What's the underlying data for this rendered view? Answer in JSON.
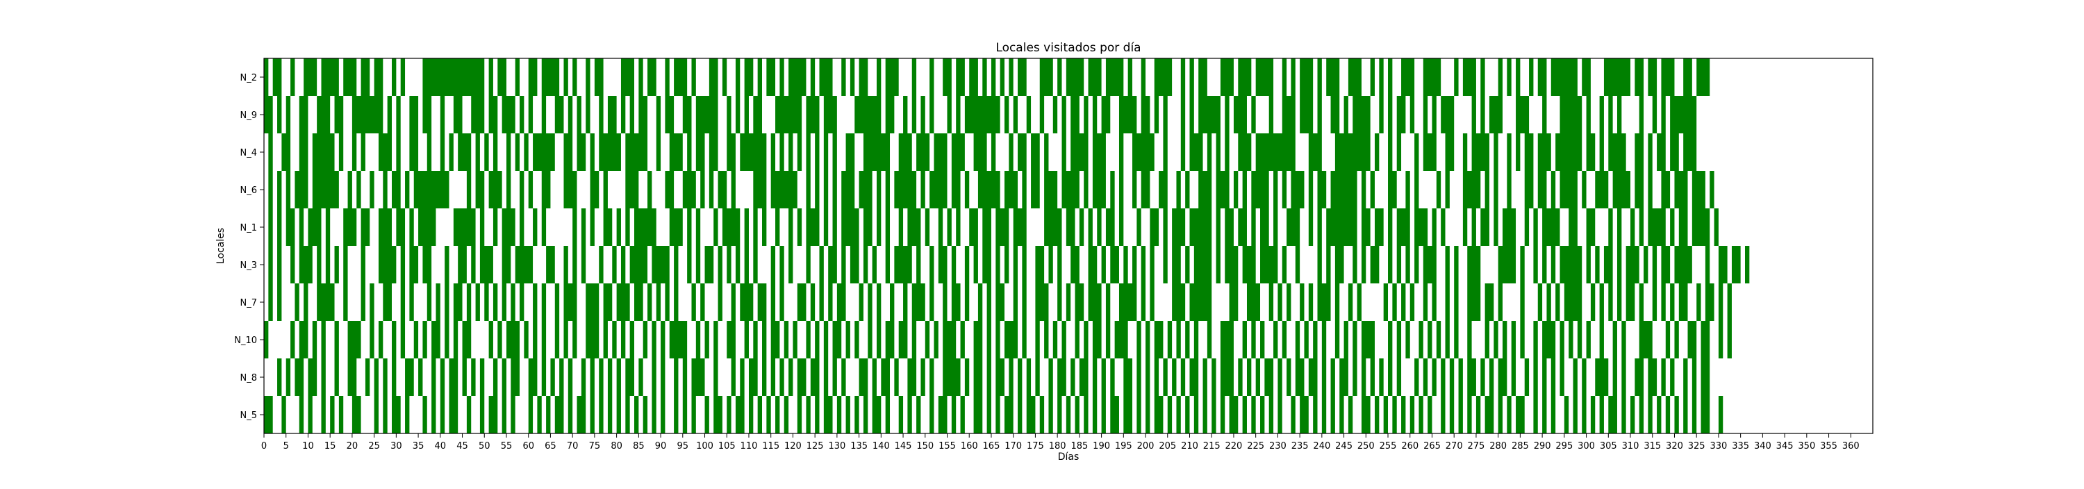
{
  "chart_data": {
    "type": "heatmap",
    "title": "Locales visitados por día",
    "xlabel": "Días",
    "ylabel": "Locales",
    "xlim": [
      0,
      365
    ],
    "categories": [
      "N_2",
      "N_9",
      "N_4",
      "N_6",
      "N_1",
      "N_3",
      "N_7",
      "N_10",
      "N_8",
      "N_5"
    ],
    "x_tick_labels": [
      "0",
      "5",
      "10",
      "15",
      "20",
      "25",
      "30",
      "35",
      "40",
      "45",
      "50",
      "55",
      "60",
      "65",
      "70",
      "75",
      "80",
      "85",
      "90",
      "95",
      "100",
      "105",
      "110",
      "115",
      "120",
      "125",
      "130",
      "135",
      "140",
      "145",
      "150",
      "155",
      "160",
      "165",
      "170",
      "175",
      "180",
      "185",
      "190",
      "195",
      "200",
      "205",
      "210",
      "215",
      "220",
      "225",
      "230",
      "235",
      "240",
      "245",
      "250",
      "255",
      "260",
      "265",
      "270",
      "275",
      "280",
      "285",
      "290",
      "295",
      "300",
      "305",
      "310",
      "315",
      "320",
      "325",
      "330",
      "335",
      "340",
      "345",
      "350",
      "355",
      "360"
    ],
    "visited_color": "#008000",
    "empty_color": "#ffffff",
    "grid": false,
    "legend": "none",
    "visits": [
      "1011001001110111101110110110010100001111111111111101011001001101111010100101100001110101100101110100011010010110101101011110101110010101100101110001000100110110110101010101100011101011110111011110100100111100101011000111011101111001010111010111001110010101001110011110001011101000101010010110111111011000111111011011011100110111",
      "1101010011001110110011111110101001101100100110011101101110101001001101010100101101010110010110011011111001010101100011111101110111000011111101100101010100010101111111101010010010010101101010110011110110101000101011111010111010001001110111010011010111100101011010010101110000101011100011100010001111101001010100001001010111111",
      "0100110011011111010010100011101001100100101011101010100101010111110011011010111110111110010011101011011001101111110101010101010101001100111111001110111011101110011101000101101101000101111011100010011111001000101110101010011101111111110001110001111111101001010001011100110010111101001010110111011111101101011110011010110110111",
      "0101010111011111100101001001011010111111110000101101110100101001100011100011010000111001000110011101010110100001110111111001010101011101110101011111010111101101001111101110101101110111101011101010010110011001010011101110101011110101011101011011111101010001100101000010100011110101001000110110101111010011101111011010011011101110100",
      "0101011010111010001110110011101101011110000111110100101110100101000000101010011010101111100011101010001011110101010010010101110101011110110101001011101001010100110110111011100001111011010101011010001001101011101111101011011010110100111001010111111101101101011101110101000010101101011100101011110011001100010100101011110101101111010",
      "0101001011101010101000100011110101101100010011010111001101111000110010101000100101011110111101001010110101010101000101010001001011010110101001011110100101101001010110101010100110101001100110101101010101001011010111101011101110111101001000010101100101011001010101011100101001110000111101001010101111101010110101110101011011110001001101101",
      "0101000101001111001000101001100101000101010110101010101010100101001011100111011011101101010101000101000100101110110101000110101010110001010100100101110100101101001010110010100111001010110111010011110101000011101111100001100111001010100101011101001010000010101010010100101001110110100001000101010111100101010101101001010101100101101010",
      "1000001011010100100111001010010100101011010101100001010111010101001010100111010101010010101011110010101001100101010110101001010101101010010101101101001010111010011010101110100101010100101011010111001010110101010100100111001010100101001010101001010101110001010100101010101001000101010101001011101010101001001010001110001010011011001010",
      "0001010110110100100110010101010011010010101101010100101011001101010101001010101010110100101001010111001000101011010101010110110101010001101011010011010100111101011010110101010100101101011010101001101010101010101101010111010101011010101101101010110101010101010001010101010101101010110100101010101001010011101010011011010100101011",
      "1100100010100101010011000101011010001010101100100101101010001010101101011010101010101010101001010100101101011010101010100101010110101010101101001010100101101010011010101101011010101010101010101101101010110101010101010101101010101010010110101010101001101010101010101001010101010110101011001010100101010101011010101010101010101011001"
    ]
  }
}
